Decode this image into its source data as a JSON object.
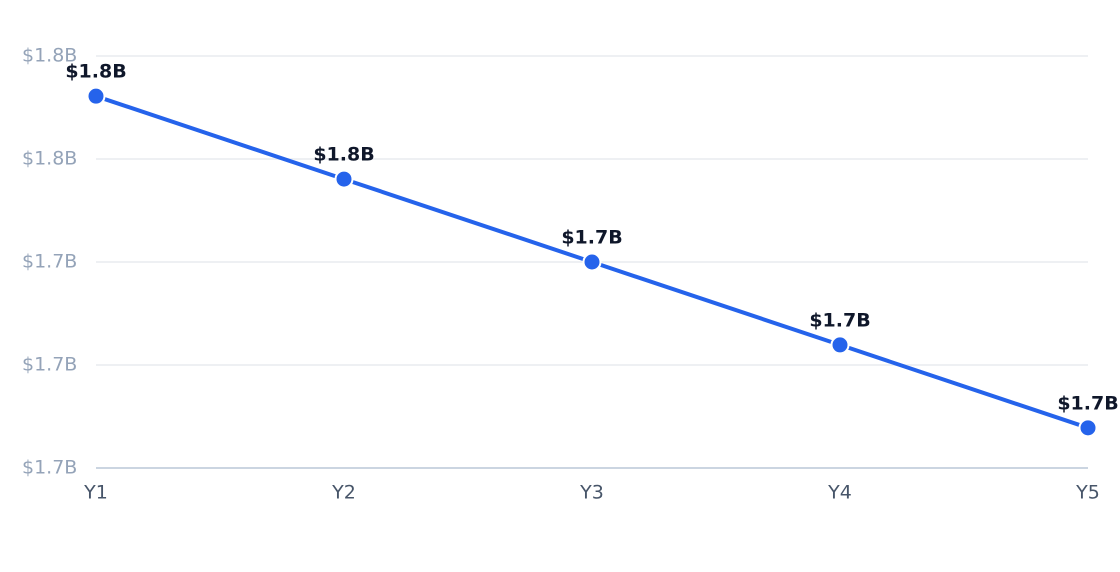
{
  "chart_data": {
    "type": "line",
    "categories": [
      "Y1",
      "Y2",
      "Y3",
      "Y4",
      "Y5"
    ],
    "values": [
      1772200000,
      1756100000,
      1740000000,
      1723900000,
      1707800000
    ],
    "value_labels": [
      "$1.8B",
      "$1.8B",
      "$1.7B",
      "$1.7B",
      "$1.7B"
    ],
    "color": "#2563eb",
    "ylim": [
      1700000000,
      1780000000
    ],
    "yticks": [
      {
        "value": 1700000000,
        "label": "$1.7B"
      },
      {
        "value": 1720000000,
        "label": "$1.7B"
      },
      {
        "value": 1740000000,
        "label": "$1.7B"
      },
      {
        "value": 1760000000,
        "label": "$1.8B"
      },
      {
        "value": 1780000000,
        "label": "$1.8B"
      }
    ],
    "grid": true
  }
}
